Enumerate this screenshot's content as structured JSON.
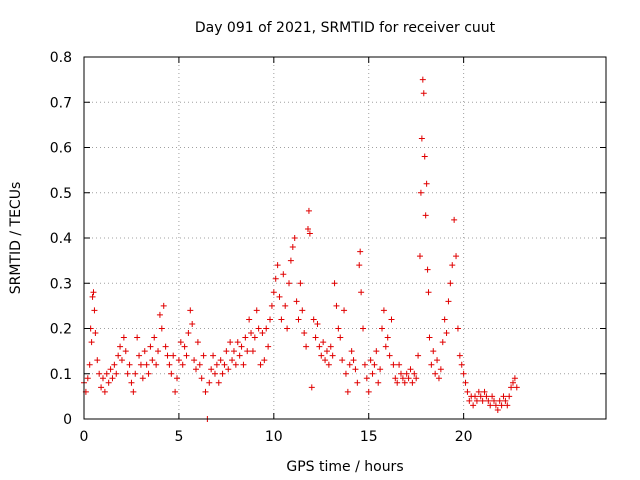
{
  "chart_data": {
    "type": "scatter",
    "title": "Day 091 of 2021, SRMTID for receiver cuut",
    "xlabel": "GPS time / hours",
    "ylabel": "SRMTID / TECUs",
    "xlim": [
      0,
      27.5
    ],
    "ylim": [
      0,
      0.8
    ],
    "x_ticks": [
      0,
      5,
      10,
      15,
      20
    ],
    "x_tick_labels": [
      "0",
      "5",
      "10",
      "15",
      "20"
    ],
    "y_ticks": [
      0,
      0.1,
      0.2,
      0.3,
      0.4,
      0.5,
      0.6,
      0.7,
      0.8
    ],
    "y_tick_labels": [
      "0",
      "0.1",
      "0.2",
      "0.3",
      "0.4",
      "0.5",
      "0.6",
      "0.7",
      "0.8"
    ],
    "grid": true,
    "marker": "+",
    "series_color": "#e00000",
    "series": [
      {
        "name": "SRMTID",
        "points": [
          [
            0.0,
            0.08
          ],
          [
            0.1,
            0.06
          ],
          [
            0.2,
            0.09
          ],
          [
            0.3,
            0.12
          ],
          [
            0.35,
            0.2
          ],
          [
            0.4,
            0.17
          ],
          [
            0.45,
            0.27
          ],
          [
            0.5,
            0.28
          ],
          [
            0.55,
            0.24
          ],
          [
            0.6,
            0.19
          ],
          [
            0.7,
            0.13
          ],
          [
            0.8,
            0.1
          ],
          [
            0.9,
            0.07
          ],
          [
            1.0,
            0.09
          ],
          [
            1.1,
            0.06
          ],
          [
            1.2,
            0.1
          ],
          [
            1.3,
            0.08
          ],
          [
            1.4,
            0.11
          ],
          [
            1.5,
            0.09
          ],
          [
            1.6,
            0.12
          ],
          [
            1.7,
            0.1
          ],
          [
            1.8,
            0.14
          ],
          [
            1.9,
            0.16
          ],
          [
            2.0,
            0.13
          ],
          [
            2.1,
            0.18
          ],
          [
            2.2,
            0.15
          ],
          [
            2.3,
            0.1
          ],
          [
            2.4,
            0.12
          ],
          [
            2.5,
            0.08
          ],
          [
            2.6,
            0.06
          ],
          [
            2.7,
            0.1
          ],
          [
            2.8,
            0.18
          ],
          [
            2.9,
            0.14
          ],
          [
            3.0,
            0.12
          ],
          [
            3.1,
            0.09
          ],
          [
            3.2,
            0.15
          ],
          [
            3.3,
            0.12
          ],
          [
            3.4,
            0.1
          ],
          [
            3.5,
            0.16
          ],
          [
            3.6,
            0.13
          ],
          [
            3.7,
            0.18
          ],
          [
            3.8,
            0.12
          ],
          [
            3.9,
            0.15
          ],
          [
            4.0,
            0.23
          ],
          [
            4.1,
            0.2
          ],
          [
            4.2,
            0.25
          ],
          [
            4.3,
            0.16
          ],
          [
            4.4,
            0.14
          ],
          [
            4.5,
            0.12
          ],
          [
            4.6,
            0.1
          ],
          [
            4.7,
            0.14
          ],
          [
            4.8,
            0.06
          ],
          [
            4.9,
            0.09
          ],
          [
            5.0,
            0.13
          ],
          [
            5.1,
            0.17
          ],
          [
            5.2,
            0.12
          ],
          [
            5.3,
            0.16
          ],
          [
            5.4,
            0.14
          ],
          [
            5.5,
            0.19
          ],
          [
            5.6,
            0.24
          ],
          [
            5.7,
            0.21
          ],
          [
            5.8,
            0.13
          ],
          [
            5.9,
            0.11
          ],
          [
            6.0,
            0.17
          ],
          [
            6.1,
            0.12
          ],
          [
            6.2,
            0.09
          ],
          [
            6.3,
            0.14
          ],
          [
            6.4,
            0.06
          ],
          [
            6.5,
            0.0
          ],
          [
            6.6,
            0.08
          ],
          [
            6.7,
            0.11
          ],
          [
            6.8,
            0.14
          ],
          [
            6.9,
            0.1
          ],
          [
            7.0,
            0.12
          ],
          [
            7.1,
            0.08
          ],
          [
            7.2,
            0.13
          ],
          [
            7.3,
            0.1
          ],
          [
            7.4,
            0.12
          ],
          [
            7.5,
            0.15
          ],
          [
            7.6,
            0.11
          ],
          [
            7.7,
            0.17
          ],
          [
            7.8,
            0.13
          ],
          [
            7.9,
            0.15
          ],
          [
            8.0,
            0.12
          ],
          [
            8.1,
            0.17
          ],
          [
            8.2,
            0.14
          ],
          [
            8.3,
            0.16
          ],
          [
            8.4,
            0.12
          ],
          [
            8.5,
            0.18
          ],
          [
            8.6,
            0.15
          ],
          [
            8.7,
            0.22
          ],
          [
            8.8,
            0.19
          ],
          [
            8.9,
            0.15
          ],
          [
            9.0,
            0.18
          ],
          [
            9.1,
            0.24
          ],
          [
            9.2,
            0.2
          ],
          [
            9.3,
            0.12
          ],
          [
            9.4,
            0.19
          ],
          [
            9.5,
            0.13
          ],
          [
            9.6,
            0.2
          ],
          [
            9.7,
            0.16
          ],
          [
            9.8,
            0.22
          ],
          [
            9.9,
            0.25
          ],
          [
            10.0,
            0.28
          ],
          [
            10.1,
            0.31
          ],
          [
            10.2,
            0.34
          ],
          [
            10.3,
            0.27
          ],
          [
            10.4,
            0.22
          ],
          [
            10.5,
            0.32
          ],
          [
            10.6,
            0.25
          ],
          [
            10.7,
            0.2
          ],
          [
            10.8,
            0.3
          ],
          [
            10.9,
            0.35
          ],
          [
            11.0,
            0.38
          ],
          [
            11.1,
            0.4
          ],
          [
            11.2,
            0.26
          ],
          [
            11.3,
            0.22
          ],
          [
            11.4,
            0.3
          ],
          [
            11.5,
            0.24
          ],
          [
            11.6,
            0.19
          ],
          [
            11.7,
            0.16
          ],
          [
            11.8,
            0.42
          ],
          [
            11.85,
            0.46
          ],
          [
            11.9,
            0.41
          ],
          [
            12.0,
            0.07
          ],
          [
            12.1,
            0.22
          ],
          [
            12.2,
            0.18
          ],
          [
            12.3,
            0.21
          ],
          [
            12.4,
            0.16
          ],
          [
            12.5,
            0.14
          ],
          [
            12.6,
            0.17
          ],
          [
            12.7,
            0.13
          ],
          [
            12.8,
            0.15
          ],
          [
            12.9,
            0.12
          ],
          [
            13.0,
            0.16
          ],
          [
            13.1,
            0.14
          ],
          [
            13.2,
            0.3
          ],
          [
            13.3,
            0.25
          ],
          [
            13.4,
            0.2
          ],
          [
            13.5,
            0.18
          ],
          [
            13.6,
            0.13
          ],
          [
            13.7,
            0.24
          ],
          [
            13.8,
            0.1
          ],
          [
            13.9,
            0.06
          ],
          [
            14.0,
            0.12
          ],
          [
            14.1,
            0.15
          ],
          [
            14.2,
            0.13
          ],
          [
            14.3,
            0.11
          ],
          [
            14.4,
            0.08
          ],
          [
            14.5,
            0.34
          ],
          [
            14.55,
            0.37
          ],
          [
            14.6,
            0.28
          ],
          [
            14.7,
            0.2
          ],
          [
            14.8,
            0.12
          ],
          [
            14.9,
            0.09
          ],
          [
            15.0,
            0.06
          ],
          [
            15.1,
            0.13
          ],
          [
            15.2,
            0.1
          ],
          [
            15.3,
            0.12
          ],
          [
            15.4,
            0.15
          ],
          [
            15.5,
            0.08
          ],
          [
            15.6,
            0.11
          ],
          [
            15.7,
            0.2
          ],
          [
            15.8,
            0.24
          ],
          [
            15.9,
            0.16
          ],
          [
            16.0,
            0.18
          ],
          [
            16.1,
            0.14
          ],
          [
            16.2,
            0.22
          ],
          [
            16.3,
            0.12
          ],
          [
            16.4,
            0.09
          ],
          [
            16.5,
            0.08
          ],
          [
            16.6,
            0.12
          ],
          [
            16.7,
            0.1
          ],
          [
            16.8,
            0.09
          ],
          [
            16.9,
            0.08
          ],
          [
            17.0,
            0.1
          ],
          [
            17.1,
            0.09
          ],
          [
            17.2,
            0.11
          ],
          [
            17.3,
            0.08
          ],
          [
            17.4,
            0.1
          ],
          [
            17.5,
            0.09
          ],
          [
            17.6,
            0.14
          ],
          [
            17.7,
            0.36
          ],
          [
            17.75,
            0.5
          ],
          [
            17.8,
            0.62
          ],
          [
            17.85,
            0.75
          ],
          [
            17.9,
            0.72
          ],
          [
            17.95,
            0.58
          ],
          [
            18.0,
            0.45
          ],
          [
            18.05,
            0.52
          ],
          [
            18.1,
            0.33
          ],
          [
            18.15,
            0.28
          ],
          [
            18.2,
            0.18
          ],
          [
            18.3,
            0.12
          ],
          [
            18.4,
            0.15
          ],
          [
            18.5,
            0.1
          ],
          [
            18.6,
            0.13
          ],
          [
            18.7,
            0.09
          ],
          [
            18.8,
            0.11
          ],
          [
            18.9,
            0.17
          ],
          [
            19.0,
            0.22
          ],
          [
            19.1,
            0.19
          ],
          [
            19.2,
            0.26
          ],
          [
            19.3,
            0.3
          ],
          [
            19.4,
            0.34
          ],
          [
            19.5,
            0.44
          ],
          [
            19.6,
            0.36
          ],
          [
            19.7,
            0.2
          ],
          [
            19.8,
            0.14
          ],
          [
            19.9,
            0.12
          ],
          [
            20.0,
            0.1
          ],
          [
            20.1,
            0.08
          ],
          [
            20.2,
            0.06
          ],
          [
            20.3,
            0.04
          ],
          [
            20.4,
            0.05
          ],
          [
            20.5,
            0.03
          ],
          [
            20.6,
            0.05
          ],
          [
            20.7,
            0.04
          ],
          [
            20.8,
            0.06
          ],
          [
            20.9,
            0.05
          ],
          [
            21.0,
            0.04
          ],
          [
            21.1,
            0.06
          ],
          [
            21.2,
            0.05
          ],
          [
            21.3,
            0.04
          ],
          [
            21.4,
            0.03
          ],
          [
            21.5,
            0.05
          ],
          [
            21.6,
            0.04
          ],
          [
            21.7,
            0.03
          ],
          [
            21.8,
            0.02
          ],
          [
            21.9,
            0.04
          ],
          [
            22.0,
            0.03
          ],
          [
            22.1,
            0.05
          ],
          [
            22.2,
            0.04
          ],
          [
            22.3,
            0.03
          ],
          [
            22.4,
            0.05
          ],
          [
            22.5,
            0.07
          ],
          [
            22.6,
            0.08
          ],
          [
            22.7,
            0.09
          ],
          [
            22.8,
            0.07
          ]
        ]
      }
    ]
  }
}
